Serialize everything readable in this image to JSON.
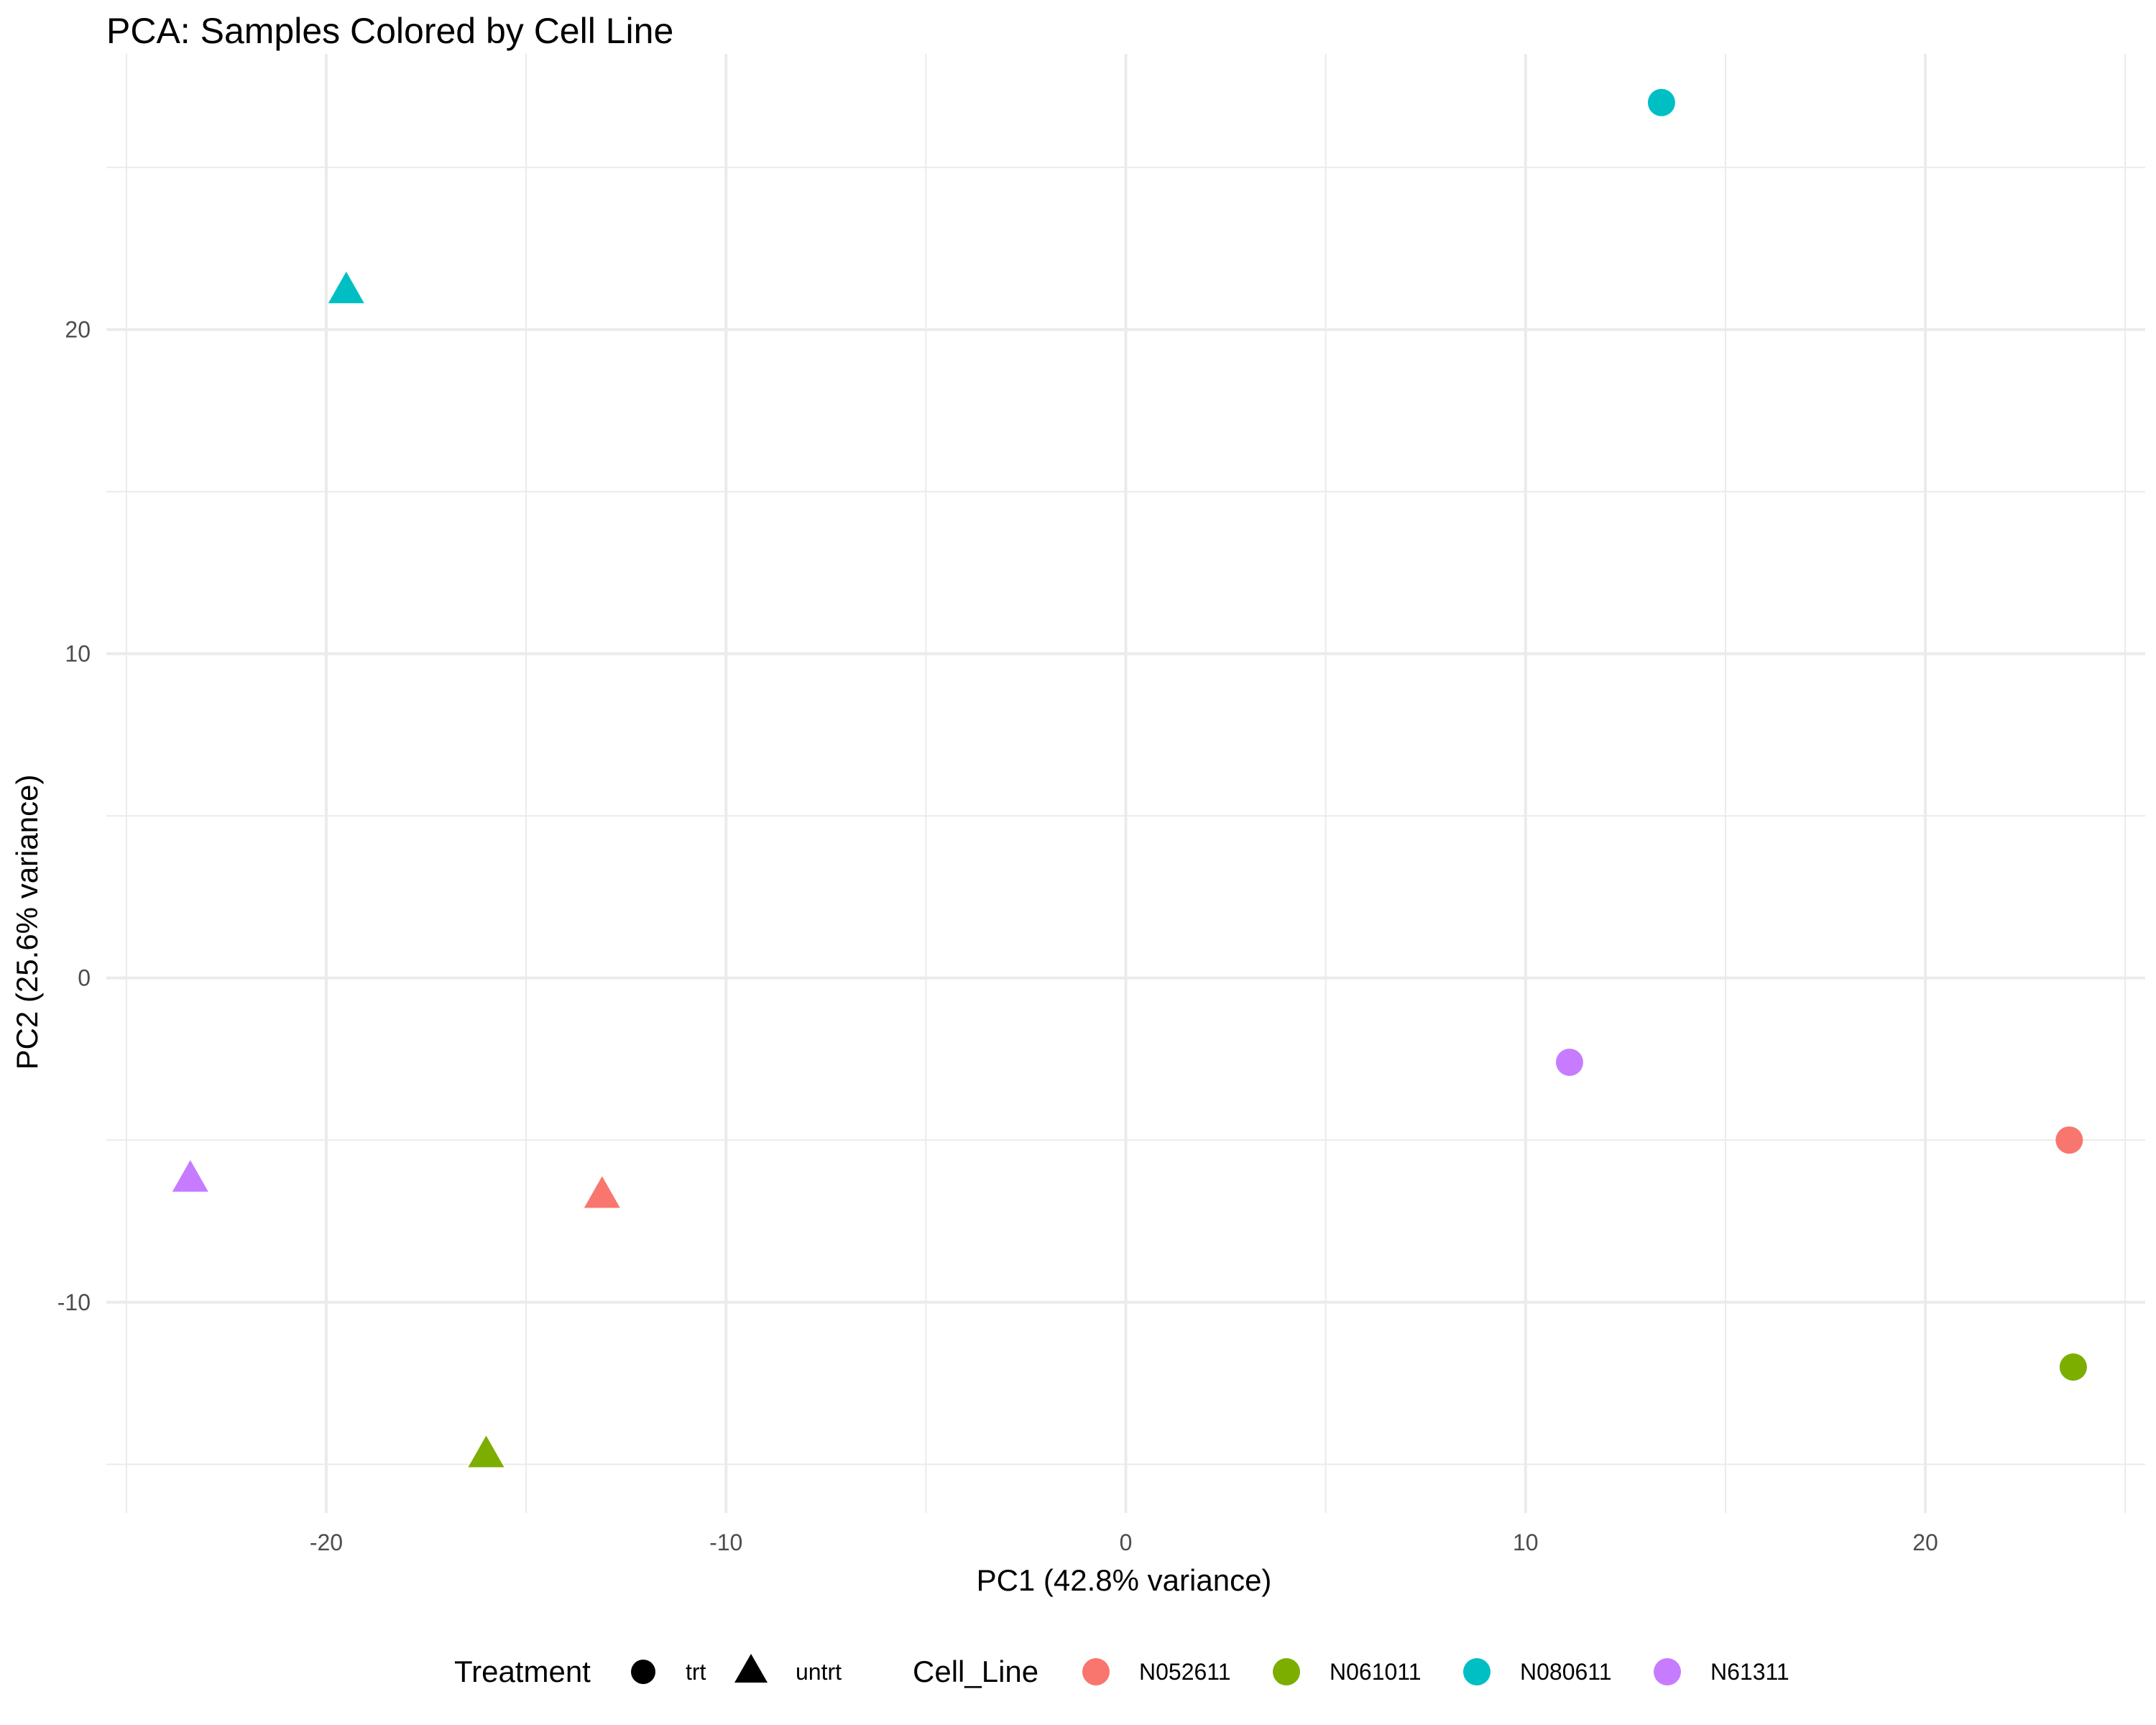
{
  "chart_data": {
    "type": "scatter",
    "title": "PCA: Samples Colored by Cell Line",
    "xlabel": "PC1 (42.8% variance)",
    "ylabel": "PC2 (25.6% variance)",
    "xlim": [
      -25.5,
      25.5
    ],
    "ylim": [
      -16.5,
      28.5
    ],
    "x_ticks": [
      -20,
      -10,
      0,
      10,
      20
    ],
    "y_ticks": [
      -10,
      0,
      10,
      20
    ],
    "grid": true,
    "legend_position": "bottom",
    "legends": {
      "shape": {
        "title": "Treatment",
        "entries": [
          {
            "label": "trt",
            "shape": "circle"
          },
          {
            "label": "untrt",
            "shape": "triangle"
          }
        ]
      },
      "color": {
        "title": "Cell_Line",
        "entries": [
          {
            "label": "N052611",
            "color": "#F8766D"
          },
          {
            "label": "N061011",
            "color": "#7CAE00"
          },
          {
            "label": "N080611",
            "color": "#00BFC4"
          },
          {
            "label": "N61311",
            "color": "#C77CFF"
          }
        ]
      }
    },
    "points": [
      {
        "x": 13.4,
        "y": 27.0,
        "cell_line": "N080611",
        "treatment": "trt"
      },
      {
        "x": -19.5,
        "y": 21.2,
        "cell_line": "N080611",
        "treatment": "untrt"
      },
      {
        "x": 11.1,
        "y": -2.6,
        "cell_line": "N61311",
        "treatment": "trt"
      },
      {
        "x": 23.6,
        "y": -5.0,
        "cell_line": "N052611",
        "treatment": "trt"
      },
      {
        "x": 23.7,
        "y": -12.0,
        "cell_line": "N061011",
        "treatment": "trt"
      },
      {
        "x": -23.4,
        "y": -6.2,
        "cell_line": "N61311",
        "treatment": "untrt"
      },
      {
        "x": -13.1,
        "y": -6.7,
        "cell_line": "N052611",
        "treatment": "untrt"
      },
      {
        "x": -16.0,
        "y": -14.7,
        "cell_line": "N061011",
        "treatment": "untrt"
      }
    ]
  }
}
